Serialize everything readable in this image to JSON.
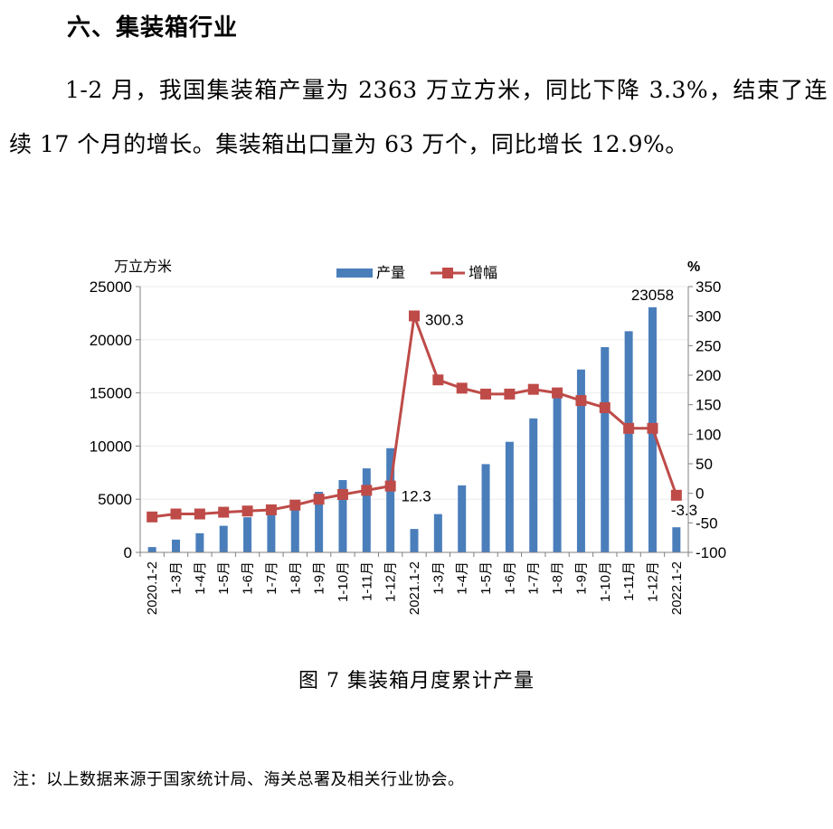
{
  "section": {
    "heading": "六、集装箱行业"
  },
  "paragraph": "1-2 月，我国集装箱产量为 2363 万立方米，同比下降 3.3%，结束了连续 17 个月的增长。集装箱出口量为 63 万个，同比增长 12.9%。",
  "caption": "图 7  集装箱月度累计产量",
  "note": "注：以上数据来源于国家统计局、海关总署及相关行业协会。",
  "colors": {
    "bar": "#4a7ebb",
    "line": "#be4b48"
  },
  "chart_data": {
    "type": "bar+line",
    "y_left_label": "万立方米",
    "y_right_label": "%",
    "y_left_range": [
      0,
      25000
    ],
    "y_left_ticks": [
      "0",
      "5000",
      "10000",
      "15000",
      "20000",
      "25000"
    ],
    "y_right_range": [
      -100,
      350
    ],
    "y_right_ticks": [
      "-100",
      "-50",
      "0",
      "50",
      "100",
      "150",
      "200",
      "250",
      "300",
      "350"
    ],
    "categories": [
      "2020.1-2",
      "1-3月",
      "1-4月",
      "1-5月",
      "1-6月",
      "1-7月",
      "1-8月",
      "1-9月",
      "1-10月",
      "1-11月",
      "1-12月",
      "2021.1-2",
      "1-3月",
      "1-4月",
      "1-5月",
      "1-6月",
      "1-7月",
      "1-8月",
      "1-9月",
      "1-10月",
      "1-11月",
      "1-12月",
      "2022.1-2"
    ],
    "series": [
      {
        "name": "产量",
        "type": "bar",
        "axis": "left",
        "values": [
          500,
          1200,
          1800,
          2500,
          3300,
          3800,
          4500,
          5700,
          6800,
          7900,
          9800,
          2200,
          3600,
          6300,
          8300,
          10400,
          12600,
          14900,
          17200,
          19300,
          20800,
          23058,
          2363
        ]
      },
      {
        "name": "增幅",
        "type": "line",
        "axis": "right",
        "values": [
          -40,
          -35,
          -35,
          -32,
          -30,
          -28,
          -20,
          -10,
          -2,
          5,
          12.3,
          300.3,
          192,
          178,
          168,
          168,
          176,
          170,
          157,
          145,
          110,
          110,
          -3.3
        ]
      }
    ],
    "annotations": [
      {
        "series": "增幅",
        "index": 11,
        "text": "300.3"
      },
      {
        "series": "增幅",
        "index": 10,
        "text": "12.3"
      },
      {
        "series": "产量",
        "index": 21,
        "text": "23058"
      },
      {
        "series": "增幅",
        "index": 22,
        "text": "-3.3"
      }
    ]
  }
}
